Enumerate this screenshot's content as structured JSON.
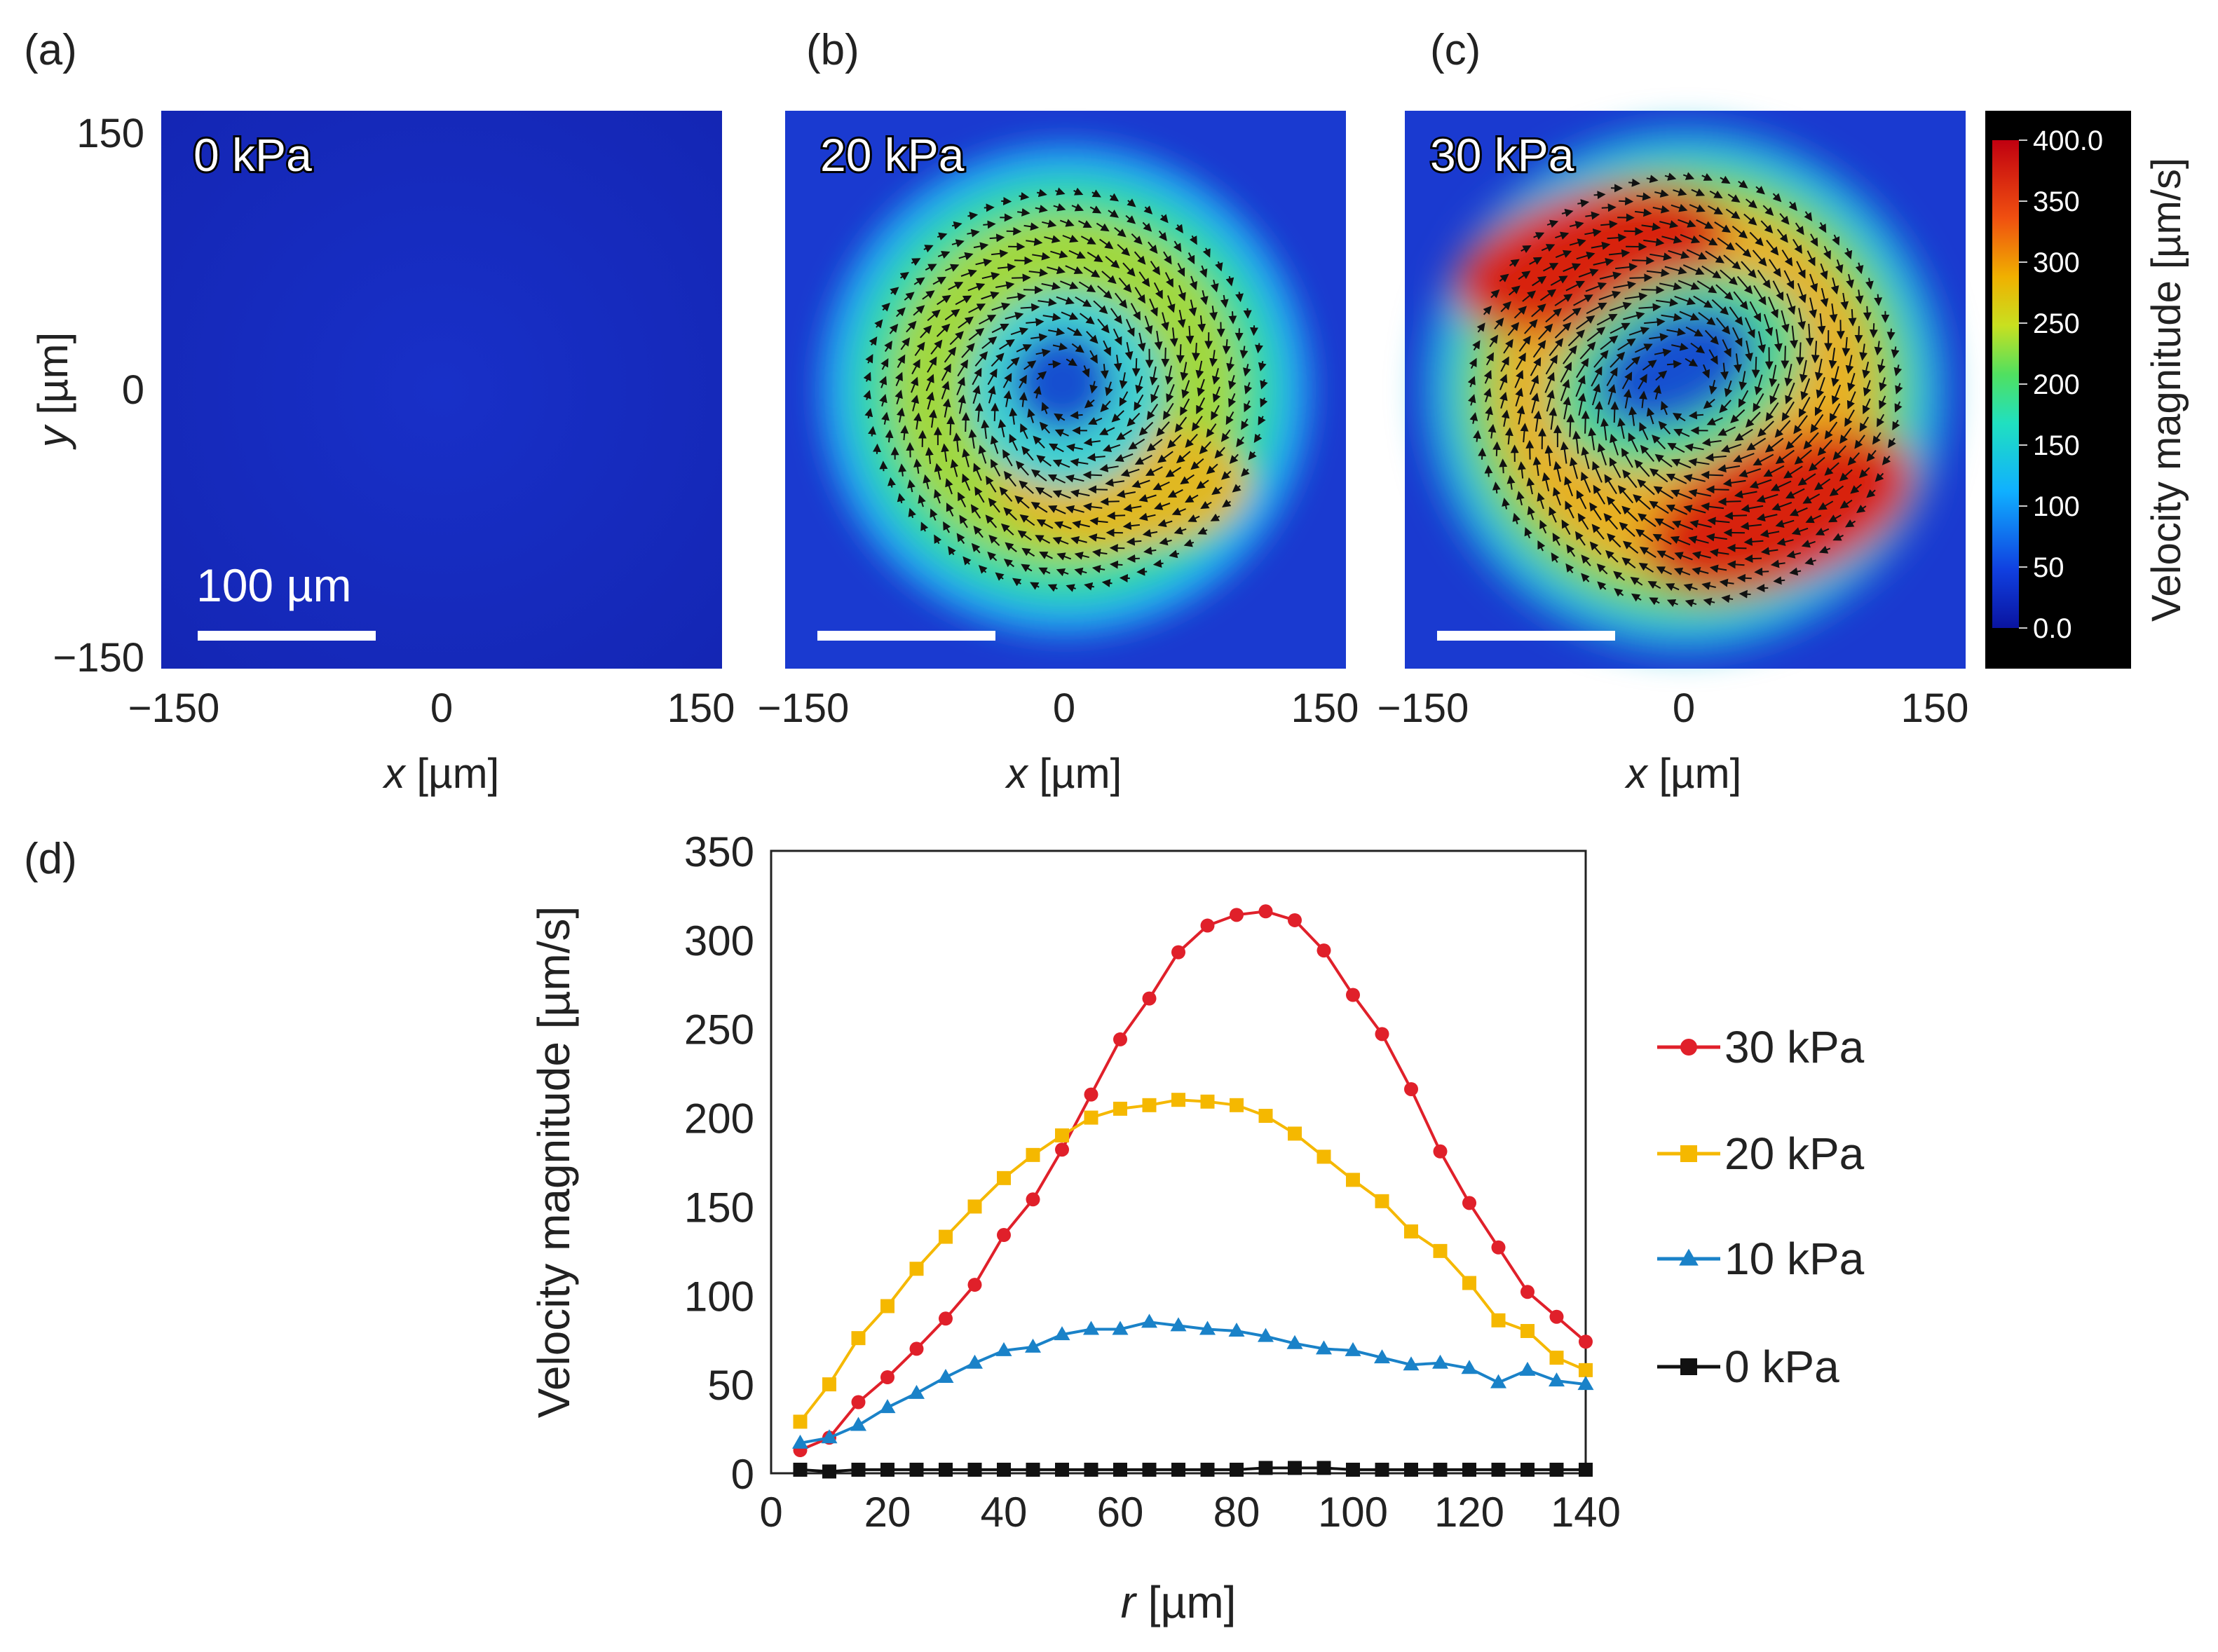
{
  "figure": {
    "panel_labels": [
      "(a)",
      "(b)",
      "(c)",
      "(d)"
    ],
    "scale_bar_label": "100 µm"
  },
  "colors": {
    "field_low": "#1426b4",
    "series_30": "#e0202a",
    "series_20": "#f5b800",
    "series_10": "#1a82c8",
    "series_0": "#111111"
  },
  "chart_data": [
    {
      "type": "heatmap",
      "panel": "(a)",
      "annotation": "0 kPa",
      "xlabel_var": "x",
      "xlabel_unit": " [µm]",
      "ylabel_var": "y",
      "ylabel_unit": " [µm]",
      "xlim": [
        -150,
        150
      ],
      "ylim": [
        -150,
        150
      ],
      "xticks": [
        "−150",
        "0",
        "150"
      ],
      "yticks": [
        "150",
        "0",
        "−150"
      ],
      "peak_velocity": 0,
      "vortex_radius": 0
    },
    {
      "type": "heatmap",
      "panel": "(b)",
      "annotation": "20 kPa",
      "xlabel_var": "x",
      "xlabel_unit": " [µm]",
      "xlim": [
        -150,
        150
      ],
      "ylim": [
        -150,
        150
      ],
      "xticks": [
        "−150",
        "0",
        "150"
      ],
      "peak_velocity": 210,
      "vortex_radius": 75
    },
    {
      "type": "heatmap",
      "panel": "(c)",
      "annotation": "30 kPa",
      "xlabel_var": "x",
      "xlabel_unit": " [µm]",
      "xlim": [
        -150,
        150
      ],
      "ylim": [
        -150,
        150
      ],
      "xticks": [
        "−150",
        "0",
        "150"
      ],
      "peak_velocity": 320,
      "vortex_radius": 85
    },
    {
      "type": "colorbar",
      "label": "Velocity magnitude [µm/s]",
      "range": [
        0,
        400
      ],
      "ticks": [
        "0.0",
        "50",
        "100",
        "150",
        "200",
        "250",
        "300",
        "350",
        "400.0"
      ]
    },
    {
      "type": "line",
      "panel": "(d)",
      "xlabel_var": "r",
      "xlabel_unit": " [µm]",
      "ylabel": "Velocity magnitude [µm/s]",
      "xlim": [
        0,
        140
      ],
      "ylim": [
        0,
        350
      ],
      "xticks": [
        0,
        20,
        40,
        60,
        80,
        100,
        120,
        140
      ],
      "yticks": [
        0,
        50,
        100,
        150,
        200,
        250,
        300,
        350
      ],
      "legend_position": "right",
      "x": [
        5,
        10,
        15,
        20,
        25,
        30,
        35,
        40,
        45,
        50,
        55,
        60,
        65,
        70,
        75,
        80,
        85,
        90,
        95,
        100,
        105,
        110,
        115,
        120,
        125,
        130,
        135,
        140
      ],
      "series": [
        {
          "name": "30 kPa",
          "marker": "circle",
          "color": "#e0202a",
          "values": [
            13,
            20,
            40,
            54,
            70,
            87,
            106,
            134,
            154,
            182,
            213,
            244,
            267,
            293,
            308,
            314,
            316,
            311,
            294,
            269,
            247,
            216,
            181,
            152,
            127,
            102,
            88,
            74
          ]
        },
        {
          "name": "20 kPa",
          "marker": "square",
          "color": "#f5b800",
          "values": [
            29,
            50,
            76,
            94,
            115,
            133,
            150,
            166,
            179,
            190,
            200,
            205,
            207,
            210,
            209,
            207,
            201,
            191,
            178,
            165,
            153,
            136,
            125,
            107,
            86,
            80,
            65,
            58
          ]
        },
        {
          "name": "10 kPa",
          "marker": "triangle",
          "color": "#1a82c8",
          "values": [
            17,
            20,
            27,
            37,
            45,
            54,
            62,
            69,
            71,
            78,
            81,
            81,
            85,
            83,
            81,
            80,
            77,
            73,
            70,
            69,
            65,
            61,
            62,
            59,
            51,
            58,
            52,
            50
          ]
        },
        {
          "name": "0 kPa",
          "marker": "square",
          "color": "#111111",
          "values": [
            2,
            1,
            2,
            2,
            2,
            2,
            2,
            2,
            2,
            2,
            2,
            2,
            2,
            2,
            2,
            2,
            3,
            3,
            3,
            2,
            2,
            2,
            2,
            2,
            2,
            2,
            2,
            2
          ]
        }
      ]
    }
  ]
}
